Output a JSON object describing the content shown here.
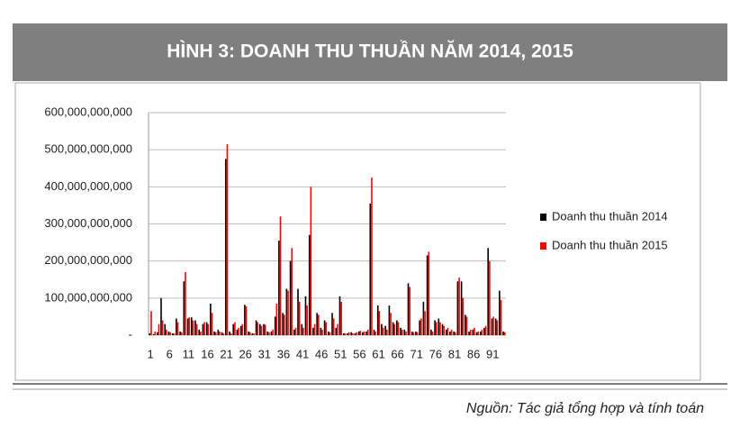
{
  "header": {
    "title": "HÌNH 3: DOANH THU THUẦN NĂM 2014, 2015"
  },
  "chart_data": {
    "type": "bar",
    "categories": [
      "1",
      null,
      null,
      null,
      null,
      "6",
      null,
      null,
      null,
      null,
      "11",
      null,
      null,
      null,
      null,
      "16",
      null,
      null,
      null,
      null,
      "21",
      null,
      null,
      null,
      null,
      "26",
      null,
      null,
      null,
      null,
      "31",
      null,
      null,
      null,
      null,
      "36",
      null,
      null,
      null,
      null,
      "41",
      null,
      null,
      null,
      null,
      "46",
      null,
      null,
      null,
      null,
      "51",
      null,
      null,
      null,
      null,
      "56",
      null,
      null,
      null,
      null,
      "61",
      null,
      null,
      null,
      null,
      "66",
      null,
      null,
      null,
      null,
      "71",
      null,
      null,
      null,
      null,
      "76",
      null,
      null,
      null,
      null,
      "81",
      null,
      null,
      null,
      null,
      "86",
      null,
      null,
      null,
      null,
      "91",
      null,
      null,
      null
    ],
    "series": [
      {
        "name": "Doanh thu thuần 2014",
        "color": "#000000",
        "values": [
          5000000000,
          3000000000,
          8000000000,
          100000000000,
          30000000000,
          10000000000,
          5000000000,
          45000000000,
          10000000000,
          145000000000,
          45000000000,
          48000000000,
          40000000000,
          15000000000,
          30000000000,
          35000000000,
          85000000000,
          10000000000,
          15000000000,
          8000000000,
          475000000000,
          10000000000,
          30000000000,
          15000000000,
          25000000000,
          82000000000,
          10000000000,
          5000000000,
          40000000000,
          30000000000,
          30000000000,
          10000000000,
          10000000000,
          50000000000,
          255000000000,
          60000000000,
          125000000000,
          200000000000,
          15000000000,
          125000000000,
          30000000000,
          105000000000,
          270000000000,
          20000000000,
          60000000000,
          20000000000,
          40000000000,
          10000000000,
          60000000000,
          20000000000,
          105000000000,
          5000000000,
          5000000000,
          8000000000,
          5000000000,
          10000000000,
          8000000000,
          10000000000,
          355000000000,
          15000000000,
          80000000000,
          30000000000,
          25000000000,
          80000000000,
          35000000000,
          40000000000,
          20000000000,
          15000000000,
          140000000000,
          10000000000,
          10000000000,
          40000000000,
          90000000000,
          215000000000,
          15000000000,
          40000000000,
          45000000000,
          30000000000,
          15000000000,
          10000000000,
          10000000000,
          145000000000,
          145000000000,
          55000000000,
          10000000000,
          15000000000,
          8000000000,
          10000000000,
          20000000000,
          235000000000,
          45000000000,
          45000000000,
          120000000000,
          10000000000
        ]
      },
      {
        "name": "Doanh thu thuần 2015",
        "color": "#ff0000",
        "values": [
          65000000000,
          10000000000,
          30000000000,
          40000000000,
          15000000000,
          8000000000,
          5000000000,
          35000000000,
          8000000000,
          170000000000,
          48000000000,
          40000000000,
          30000000000,
          10000000000,
          35000000000,
          30000000000,
          60000000000,
          8000000000,
          10000000000,
          5000000000,
          515000000000,
          5000000000,
          35000000000,
          20000000000,
          30000000000,
          78000000000,
          8000000000,
          5000000000,
          35000000000,
          25000000000,
          28000000000,
          8000000000,
          15000000000,
          85000000000,
          320000000000,
          55000000000,
          120000000000,
          235000000000,
          20000000000,
          90000000000,
          20000000000,
          80000000000,
          400000000000,
          30000000000,
          55000000000,
          15000000000,
          35000000000,
          8000000000,
          45000000000,
          30000000000,
          90000000000,
          5000000000,
          8000000000,
          5000000000,
          8000000000,
          12000000000,
          10000000000,
          15000000000,
          425000000000,
          10000000000,
          65000000000,
          20000000000,
          15000000000,
          60000000000,
          30000000000,
          35000000000,
          15000000000,
          10000000000,
          130000000000,
          8000000000,
          8000000000,
          45000000000,
          65000000000,
          225000000000,
          10000000000,
          35000000000,
          35000000000,
          25000000000,
          20000000000,
          15000000000,
          8000000000,
          155000000000,
          100000000000,
          50000000000,
          15000000000,
          20000000000,
          10000000000,
          15000000000,
          25000000000,
          200000000000,
          50000000000,
          40000000000,
          95000000000,
          8000000000
        ]
      }
    ],
    "ylim": [
      0,
      600000000000
    ],
    "yticks": [
      {
        "value": 0,
        "label": "-"
      },
      {
        "value": 100000000000,
        "label": "100,000,000,000"
      },
      {
        "value": 200000000000,
        "label": "200,000,000,000"
      },
      {
        "value": 300000000000,
        "label": "300,000,000,000"
      },
      {
        "value": 400000000000,
        "label": "400,000,000,000"
      },
      {
        "value": 500000000000,
        "label": "500,000,000,000"
      },
      {
        "value": 600000000000,
        "label": "600,000,000,000"
      }
    ],
    "grid": true,
    "legend": "right"
  },
  "source": "Nguồn: Tác giả tổng hợp và tính toán"
}
